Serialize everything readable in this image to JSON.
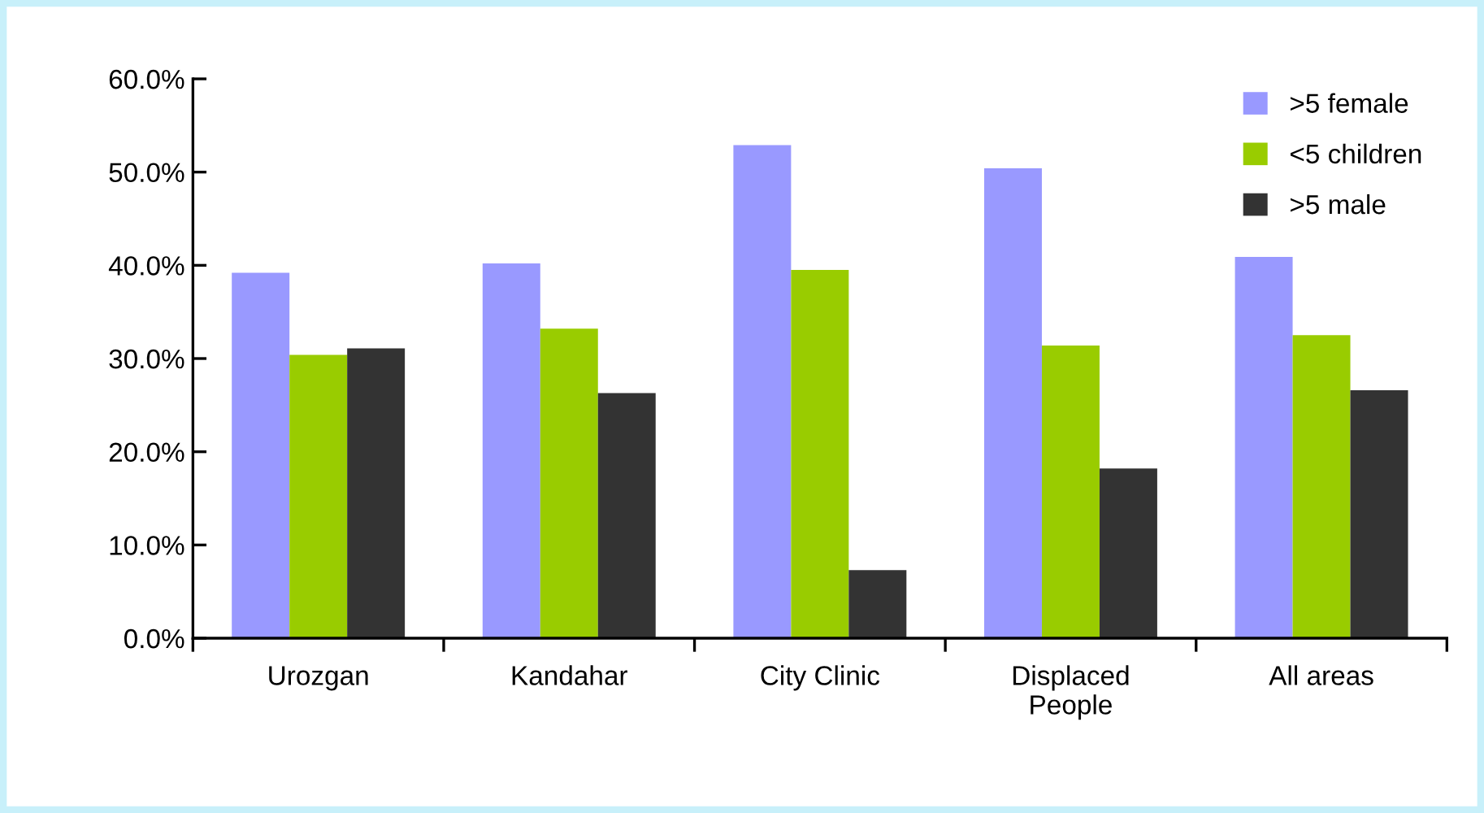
{
  "chart_data": {
    "type": "bar",
    "categories": [
      "Urozgan",
      "Kandahar",
      "City Clinic",
      "Displaced\nPeople",
      "All areas"
    ],
    "series": [
      {
        "name": ">5 female",
        "color": "#9999ff",
        "values": [
          39.2,
          40.2,
          52.9,
          50.4,
          40.9
        ]
      },
      {
        "name": "<5 children",
        "color": "#99cc00",
        "values": [
          30.4,
          33.2,
          39.5,
          31.4,
          32.5
        ]
      },
      {
        "name": ">5 male",
        "color": "#333333",
        "values": [
          31.1,
          26.3,
          7.3,
          18.2,
          26.6
        ]
      }
    ],
    "ylim": [
      0,
      60
    ],
    "yticks": [
      {
        "value": 0,
        "label": "0.0%"
      },
      {
        "value": 10,
        "label": "10.0%"
      },
      {
        "value": 20,
        "label": "20.0%"
      },
      {
        "value": 30,
        "label": "30.0%"
      },
      {
        "value": 40,
        "label": "40.0%"
      },
      {
        "value": 50,
        "label": "50.0%"
      },
      {
        "value": 60,
        "label": "60.0%"
      }
    ],
    "grid": false,
    "legend": "top right"
  }
}
